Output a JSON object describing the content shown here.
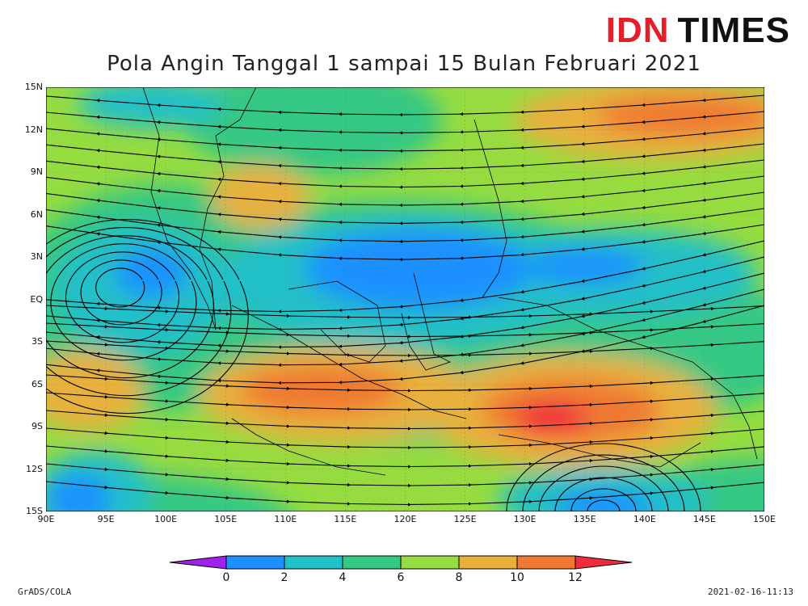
{
  "brand": {
    "part1": "IDN",
    "part2": "TIMES"
  },
  "title": "Pola Angin Tanggal 1 sampai 15 Bulan Februari 2021",
  "map": {
    "lat_labels": [
      "15N",
      "12N",
      "9N",
      "6N",
      "3N",
      "EQ",
      "3S",
      "6S",
      "9S",
      "12S",
      "15S"
    ],
    "lon_labels": [
      "90E",
      "95E",
      "100E",
      "105E",
      "110E",
      "115E",
      "120E",
      "125E",
      "130E",
      "135E",
      "140E",
      "145E",
      "150E"
    ],
    "lat_range": [
      -15,
      15
    ],
    "lon_range": [
      90,
      150
    ],
    "variable": "wind speed with streamlines",
    "grid": true
  },
  "legend": {
    "ticks": [
      "0",
      "2",
      "4",
      "6",
      "8",
      "10",
      "12"
    ],
    "colors": [
      "#a020f0",
      "#1e90ff",
      "#20c0c8",
      "#34c884",
      "#96dc40",
      "#e8b03c",
      "#f07832",
      "#f02c3c"
    ]
  },
  "footer": {
    "left": "GrADS/COLA",
    "right": "2021-02-16-11:13"
  }
}
